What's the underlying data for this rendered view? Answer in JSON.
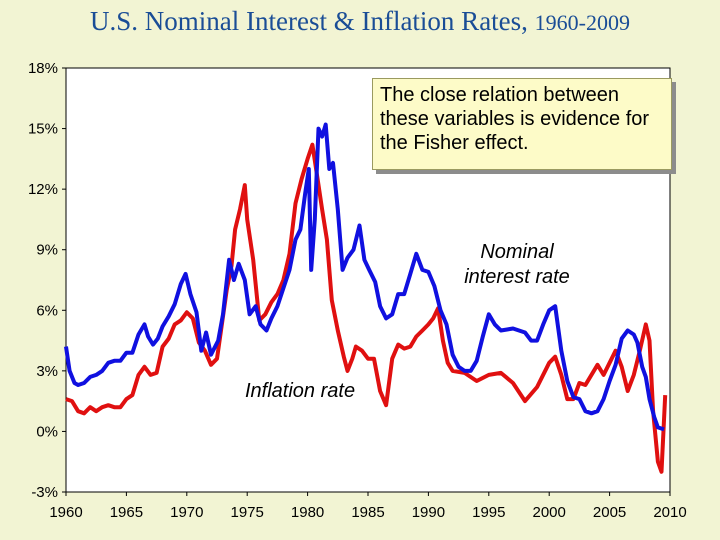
{
  "title": {
    "main": "U.S. Nominal Interest & Inflation Rates, ",
    "years": "1960-2009"
  },
  "callout": "The close relation between these variables is evidence for the Fisher effect.",
  "colors": {
    "background": "#f2f4d3",
    "plot_bg": "#ffffff",
    "nominal": "#1010e0",
    "inflation": "#e01010",
    "title": "#1a4d96"
  },
  "chart_data": {
    "type": "line",
    "title": "U.S. Nominal Interest & Inflation Rates, 1960-2009",
    "xlabel": "",
    "ylabel": "",
    "xlim": [
      1960,
      2010
    ],
    "ylim": [
      -3,
      18
    ],
    "grid": false,
    "x_ticks": [
      "1960",
      "1965",
      "1970",
      "1975",
      "1980",
      "1985",
      "1990",
      "1995",
      "2000",
      "2005",
      "2010"
    ],
    "y_ticks": [
      "-3%",
      "0%",
      "3%",
      "6%",
      "9%",
      "12%",
      "15%",
      "18%"
    ],
    "annotations": [
      "Nominal interest rate",
      "Inflation rate"
    ],
    "series": [
      {
        "name": "Nominal interest rate",
        "color": "#1010e0",
        "x": [
          1960,
          1960.3,
          1960.7,
          1961,
          1961.5,
          1962,
          1962.5,
          1963,
          1963.5,
          1964,
          1964.5,
          1965,
          1965.5,
          1966,
          1966.5,
          1966.8,
          1967.2,
          1967.6,
          1968,
          1968.5,
          1969,
          1969.5,
          1969.9,
          1970.3,
          1970.8,
          1971.2,
          1971.6,
          1972,
          1972.6,
          1973,
          1973.5,
          1973.9,
          1974.3,
          1974.8,
          1975.2,
          1975.7,
          1976.1,
          1976.6,
          1977,
          1977.5,
          1978,
          1978.5,
          1979,
          1979.4,
          1979.8,
          1980.1,
          1980.3,
          1980.6,
          1980.9,
          1981.2,
          1981.5,
          1981.8,
          1982.1,
          1982.5,
          1982.9,
          1983.3,
          1983.8,
          1984.3,
          1984.7,
          1985.1,
          1985.6,
          1986,
          1986.5,
          1987,
          1987.5,
          1988,
          1988.5,
          1989,
          1989.5,
          1990,
          1990.5,
          1991,
          1991.5,
          1992,
          1992.5,
          1993,
          1993.5,
          1994,
          1994.5,
          1995,
          1995.5,
          1996,
          1997,
          1998,
          1998.5,
          1999,
          1999.5,
          2000,
          2000.5,
          2001,
          2001.5,
          2002,
          2002.5,
          2003,
          2003.5,
          2004,
          2004.5,
          2005,
          2005.5,
          2006,
          2006.5,
          2007,
          2007.3,
          2007.7,
          2008,
          2008.3,
          2008.7,
          2009,
          2009.5
        ],
        "y": [
          4.2,
          3.0,
          2.4,
          2.3,
          2.4,
          2.7,
          2.8,
          3.0,
          3.4,
          3.5,
          3.5,
          3.9,
          3.9,
          4.8,
          5.3,
          4.7,
          4.3,
          4.6,
          5.2,
          5.7,
          6.3,
          7.3,
          7.8,
          6.8,
          5.9,
          4.0,
          4.9,
          3.8,
          4.5,
          5.8,
          8.5,
          7.5,
          8.3,
          7.5,
          5.8,
          6.2,
          5.3,
          5.0,
          5.6,
          6.2,
          7.1,
          8.0,
          9.5,
          10.0,
          11.8,
          13.0,
          8.0,
          10.5,
          15.0,
          14.6,
          15.2,
          13.0,
          13.3,
          11.0,
          8.0,
          8.6,
          9.0,
          10.2,
          8.5,
          8.0,
          7.4,
          6.2,
          5.6,
          5.8,
          6.8,
          6.8,
          7.8,
          8.8,
          8.0,
          7.9,
          7.2,
          6.0,
          5.3,
          3.8,
          3.2,
          3.0,
          3.0,
          3.5,
          4.7,
          5.8,
          5.3,
          5.0,
          5.1,
          4.9,
          4.5,
          4.5,
          5.3,
          6.0,
          6.2,
          4.0,
          2.5,
          1.7,
          1.6,
          1.0,
          0.9,
          1.0,
          1.6,
          2.5,
          3.3,
          4.6,
          5.0,
          4.8,
          4.4,
          3.2,
          2.7,
          1.6,
          0.7,
          0.2,
          0.1
        ]
      },
      {
        "name": "Inflation rate",
        "color": "#e01010",
        "x": [
          1960,
          1960.5,
          1961,
          1961.5,
          1962,
          1962.5,
          1963,
          1963.5,
          1964,
          1964.5,
          1965,
          1965.5,
          1966,
          1966.5,
          1967,
          1967.5,
          1968,
          1968.5,
          1969,
          1969.5,
          1970,
          1970.5,
          1971,
          1971.5,
          1972,
          1972.5,
          1973,
          1973.3,
          1973.7,
          1974,
          1974.4,
          1974.8,
          1975,
          1975.5,
          1976,
          1976.5,
          1977,
          1977.5,
          1978,
          1978.5,
          1979,
          1979.5,
          1980,
          1980.4,
          1980.8,
          1981.2,
          1981.6,
          1982,
          1982.5,
          1983,
          1983.3,
          1983.7,
          1984,
          1984.5,
          1985,
          1985.5,
          1986,
          1986.5,
          1987,
          1987.5,
          1988,
          1988.5,
          1989,
          1989.5,
          1990,
          1990.4,
          1990.8,
          1991.2,
          1991.6,
          1992,
          1993,
          1994,
          1995,
          1996,
          1997,
          1998,
          1999,
          2000,
          2000.5,
          2001,
          2001.5,
          2002,
          2002.5,
          2003,
          2004,
          2004.5,
          2005,
          2005.5,
          2006,
          2006.5,
          2007,
          2007.5,
          2008,
          2008.3,
          2008.6,
          2009,
          2009.3,
          2009.6
        ],
        "y": [
          1.6,
          1.5,
          1.0,
          0.9,
          1.2,
          1.0,
          1.2,
          1.3,
          1.2,
          1.2,
          1.6,
          1.8,
          2.8,
          3.2,
          2.8,
          2.9,
          4.2,
          4.6,
          5.3,
          5.5,
          5.9,
          5.6,
          4.4,
          4.0,
          3.3,
          3.6,
          5.7,
          7.0,
          8.2,
          10.0,
          11.0,
          12.2,
          10.5,
          8.5,
          5.5,
          5.8,
          6.4,
          6.8,
          7.5,
          8.8,
          11.3,
          12.5,
          13.5,
          14.2,
          12.6,
          11.0,
          9.5,
          6.5,
          5.0,
          3.7,
          3.0,
          3.6,
          4.2,
          4.0,
          3.6,
          3.6,
          2.0,
          1.3,
          3.6,
          4.3,
          4.1,
          4.2,
          4.7,
          5.0,
          5.3,
          5.6,
          6.1,
          4.5,
          3.4,
          3.0,
          2.9,
          2.5,
          2.8,
          2.9,
          2.4,
          1.5,
          2.2,
          3.4,
          3.7,
          2.8,
          1.6,
          1.6,
          2.4,
          2.3,
          3.3,
          2.8,
          3.4,
          4.0,
          3.2,
          2.0,
          2.8,
          4.0,
          5.3,
          4.5,
          1.0,
          -1.5,
          -2.0,
          1.8
        ]
      }
    ]
  }
}
